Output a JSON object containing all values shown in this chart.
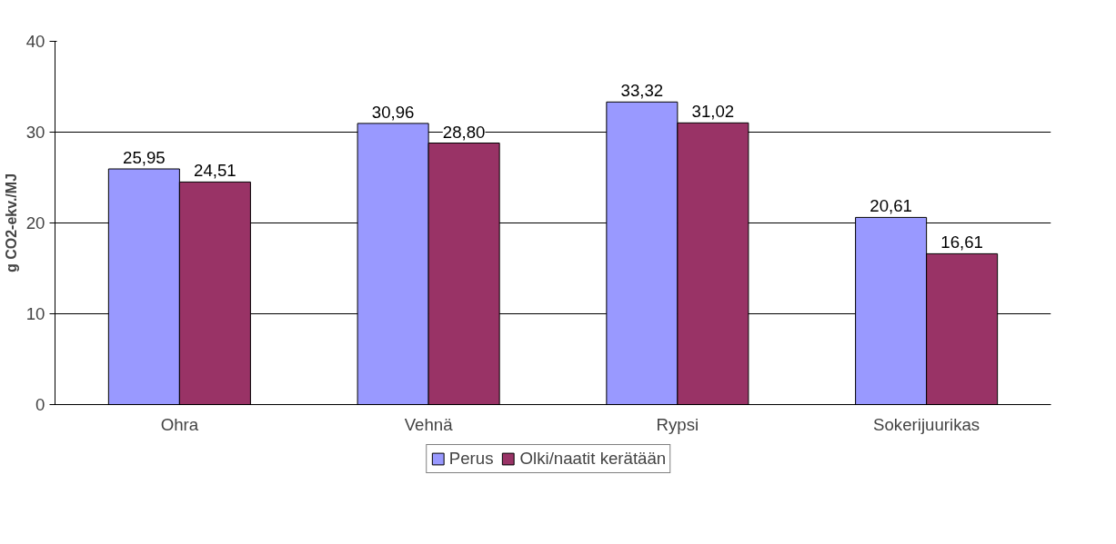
{
  "chart_data": {
    "type": "bar",
    "ylabel": "g CO2-ekv./MJ",
    "categories": [
      "Ohra",
      "Vehnä",
      "Rypsi",
      "Sokerijuurikas"
    ],
    "series": [
      {
        "name": "Perus",
        "color": "#9999ff",
        "values": [
          25.95,
          30.96,
          33.32,
          20.61
        ],
        "value_labels": [
          "25,95",
          "30,96",
          "33,32",
          "20,61"
        ]
      },
      {
        "name": "Olki/naatit kerätään",
        "color": "#993366",
        "values": [
          24.51,
          28.8,
          31.02,
          16.61
        ],
        "value_labels": [
          "24,51",
          "28,80",
          "31,02",
          "16,61"
        ]
      }
    ],
    "ylim": [
      0,
      40
    ],
    "yticks": [
      0,
      10,
      20,
      30,
      40
    ],
    "grid": "y",
    "legend": "bottom"
  }
}
